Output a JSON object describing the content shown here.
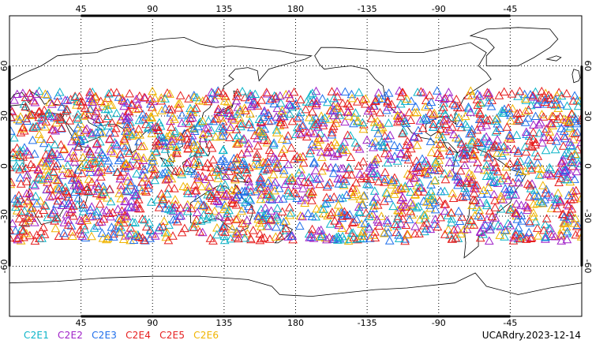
{
  "map": {
    "projection": "cylindrical-equidistant",
    "center_longitude": 180,
    "lon_range": [
      0,
      360
    ],
    "lat_range": [
      -90,
      90
    ],
    "grid": true,
    "gridline_style": "dotted",
    "top_lon_labels": [
      "45",
      "90",
      "135",
      "180",
      "-135",
      "-90",
      "-45"
    ],
    "bottom_lon_labels": [
      "45",
      "90",
      "135",
      "180",
      "-135",
      "-90",
      "-45"
    ],
    "left_lat_labels": [
      "60",
      "30",
      "0",
      "-30",
      "-60"
    ],
    "right_lat_labels": [
      "60",
      "30",
      "0",
      "-30",
      "-60"
    ],
    "marker_shape": "triangle-outline",
    "observation_lat_band": [
      -45,
      45
    ]
  },
  "legend": {
    "items": [
      {
        "label": "C2E1",
        "color": "#0bb4c8"
      },
      {
        "label": "C2E2",
        "color": "#a020c8"
      },
      {
        "label": "C2E3",
        "color": "#1e6eeb"
      },
      {
        "label": "C2E4",
        "color": "#e61e1e"
      },
      {
        "label": "C2E5",
        "color": "#e61e1e"
      },
      {
        "label": "C2E6",
        "color": "#f0b400"
      }
    ]
  },
  "product_label": "UCARdry.2023-12-14",
  "colors": {
    "coastline": "#000000",
    "frame": "#000000",
    "gridline": "#000000"
  }
}
